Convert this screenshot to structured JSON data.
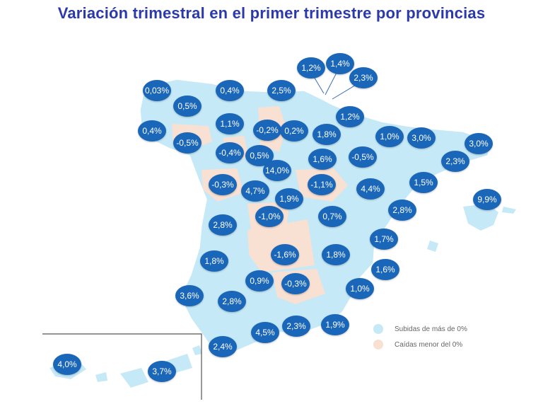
{
  "title": "Variación trimestral en el primer trimestre por provincias",
  "colors": {
    "rise": "#c5e9f7",
    "fall": "#f8e0d2",
    "bubble": "#1a66b8",
    "title": "#2b3aa8"
  },
  "legend": [
    {
      "label": "Subidas de más de 0%",
      "color": "#c5e9f7"
    },
    {
      "label": "Caídas menor del 0%",
      "color": "#f8e0d2"
    }
  ],
  "provinces": [
    {
      "value": "0,03%",
      "trend": "rise"
    },
    {
      "value": "0,4%",
      "trend": "rise"
    },
    {
      "value": "2,5%",
      "trend": "rise"
    },
    {
      "value": "1,2%",
      "trend": "rise"
    },
    {
      "value": "1,4%",
      "trend": "rise"
    },
    {
      "value": "2,3%",
      "trend": "rise"
    },
    {
      "value": "0,5%",
      "trend": "rise"
    },
    {
      "value": "1,2%",
      "trend": "rise"
    },
    {
      "value": "0,4%",
      "trend": "rise"
    },
    {
      "value": "1,1%",
      "trend": "rise"
    },
    {
      "value": "-0,2%",
      "trend": "fall"
    },
    {
      "value": "0,2%",
      "trend": "rise"
    },
    {
      "value": "1,8%",
      "trend": "rise"
    },
    {
      "value": "1,0%",
      "trend": "rise"
    },
    {
      "value": "3,0%",
      "trend": "rise"
    },
    {
      "value": "3,0%",
      "trend": "rise"
    },
    {
      "value": "-0,5%",
      "trend": "fall"
    },
    {
      "value": "-0,4%",
      "trend": "fall"
    },
    {
      "value": "0,5%",
      "trend": "rise"
    },
    {
      "value": "1,6%",
      "trend": "rise"
    },
    {
      "value": "-0,5%",
      "trend": "fall"
    },
    {
      "value": "2,3%",
      "trend": "rise"
    },
    {
      "value": "14,0%",
      "trend": "rise"
    },
    {
      "value": "-0,3%",
      "trend": "fall"
    },
    {
      "value": "4,7%",
      "trend": "rise"
    },
    {
      "value": "-1,1%",
      "trend": "fall"
    },
    {
      "value": "4,4%",
      "trend": "rise"
    },
    {
      "value": "1,5%",
      "trend": "rise"
    },
    {
      "value": "1,9%",
      "trend": "rise"
    },
    {
      "value": "9,9%",
      "trend": "rise"
    },
    {
      "value": "2,8%",
      "trend": "rise"
    },
    {
      "value": "-1,0%",
      "trend": "fall"
    },
    {
      "value": "0,7%",
      "trend": "rise"
    },
    {
      "value": "2,8%",
      "trend": "rise"
    },
    {
      "value": "1,7%",
      "trend": "rise"
    },
    {
      "value": "1,8%",
      "trend": "rise"
    },
    {
      "value": "-1,6%",
      "trend": "fall"
    },
    {
      "value": "1,8%",
      "trend": "rise"
    },
    {
      "value": "1,6%",
      "trend": "rise"
    },
    {
      "value": "0,9%",
      "trend": "rise"
    },
    {
      "value": "-0,3%",
      "trend": "fall"
    },
    {
      "value": "3,6%",
      "trend": "rise"
    },
    {
      "value": "2,8%",
      "trend": "rise"
    },
    {
      "value": "1,0%",
      "trend": "rise"
    },
    {
      "value": "2,3%",
      "trend": "rise"
    },
    {
      "value": "1,9%",
      "trend": "rise"
    },
    {
      "value": "4,5%",
      "trend": "rise"
    },
    {
      "value": "2,4%",
      "trend": "rise"
    },
    {
      "value": "4,0%",
      "trend": "rise"
    },
    {
      "value": "3,7%",
      "trend": "rise"
    }
  ]
}
